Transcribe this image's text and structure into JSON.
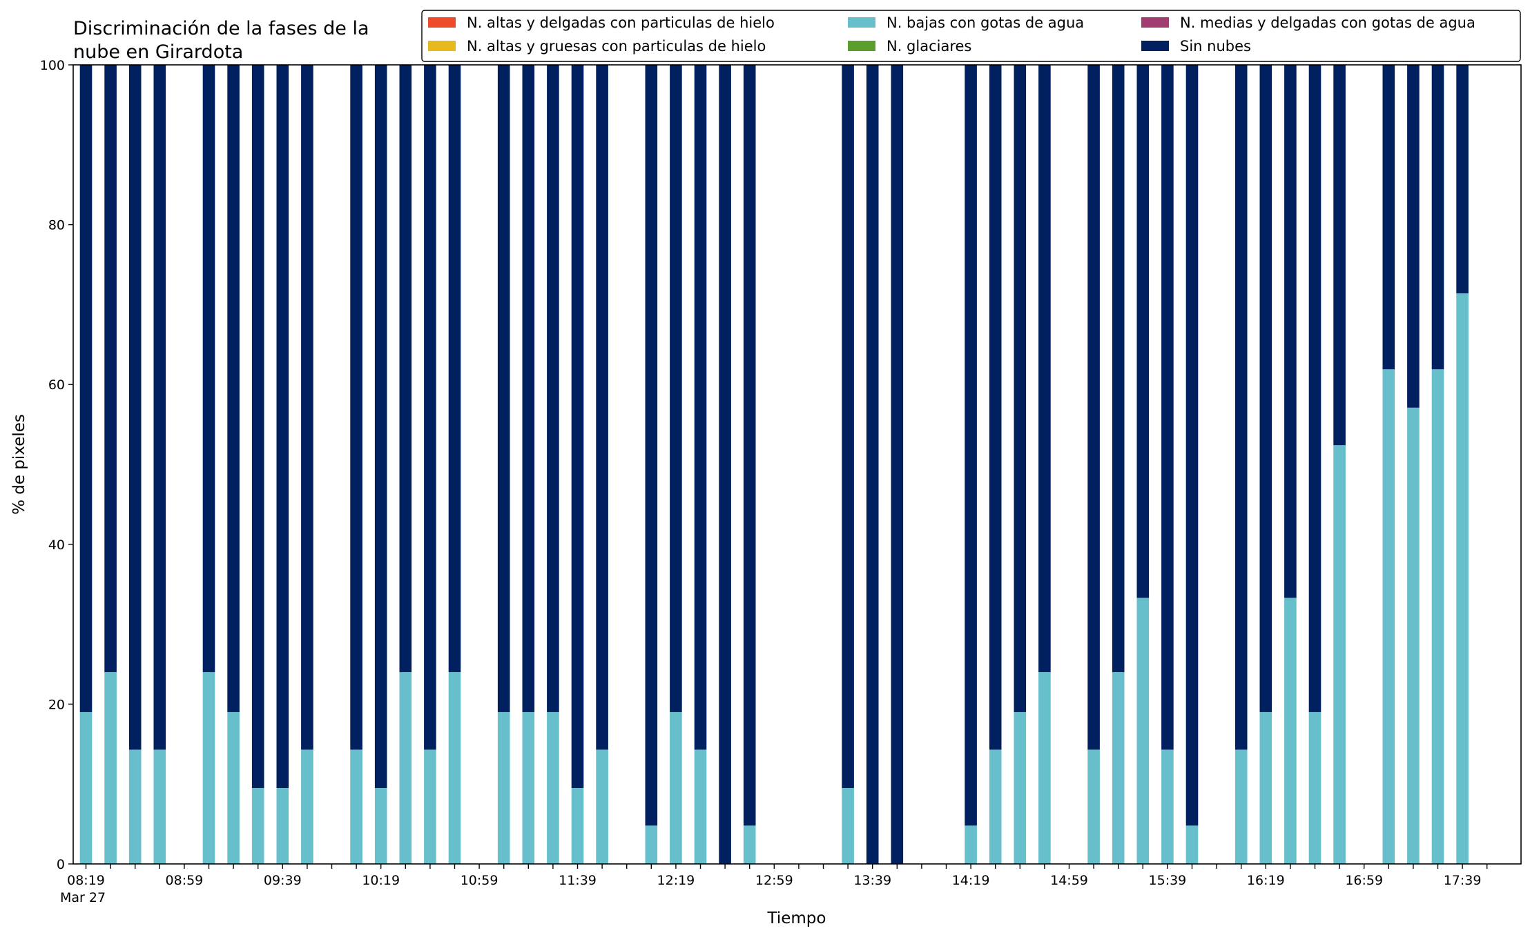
{
  "chart_data": {
    "type": "bar",
    "stacked": true,
    "title_lines": [
      "Discriminación de la fases de la",
      "nube en Girardota"
    ],
    "xlabel": "Tiempo",
    "ylabel": "% de pixeles",
    "ylim": [
      0,
      100
    ],
    "yticks": [
      "0",
      "20",
      "40",
      "60",
      "80",
      "100"
    ],
    "xtick_labels": [
      "08:19",
      "08:59",
      "09:39",
      "10:19",
      "10:59",
      "11:39",
      "12:19",
      "12:59",
      "13:39",
      "14:19",
      "14:59",
      "15:39",
      "16:19",
      "16:59",
      "17:39"
    ],
    "xtick_sublabel": "Mar 27",
    "x_start": "08:19",
    "x_step_minutes": 10,
    "grid": false,
    "legend_position": "top-right",
    "legend": [
      {
        "name": "N. altas y delgadas con particulas de hielo",
        "color": "#ee4b2b"
      },
      {
        "name": "N. altas y gruesas con particulas de hielo",
        "color": "#e6b91e"
      },
      {
        "name": "N. bajas con gotas de agua",
        "color": "#66bfcb"
      },
      {
        "name": "N. glaciares",
        "color": "#5c9e2e"
      },
      {
        "name": "N. medias y delgadas con gotas de agua",
        "color": "#a23d72"
      },
      {
        "name": "Sin nubes",
        "color": "#00205f"
      }
    ],
    "times": [
      "08:19",
      "08:29",
      "08:39",
      "08:49",
      "08:59",
      "09:09",
      "09:19",
      "09:29",
      "09:39",
      "09:49",
      "09:59",
      "10:09",
      "10:19",
      "10:29",
      "10:39",
      "10:49",
      "10:59",
      "11:09",
      "11:19",
      "11:29",
      "11:39",
      "11:49",
      "11:59",
      "12:09",
      "12:19",
      "12:29",
      "12:39",
      "12:49",
      "12:59",
      "13:09",
      "13:19",
      "13:29",
      "13:39",
      "13:49",
      "13:59",
      "14:09",
      "14:19",
      "14:29",
      "14:39",
      "14:49",
      "14:59",
      "15:09",
      "15:19",
      "15:29",
      "15:39",
      "15:49",
      "15:59",
      "16:09",
      "16:19",
      "16:29",
      "16:39",
      "16:49",
      "16:59",
      "17:09",
      "17:19",
      "17:29",
      "17:39",
      "17:49"
    ],
    "series": [
      {
        "name": "N. bajas con gotas de agua",
        "color": "#66bfcb",
        "values": [
          19,
          24,
          14.3,
          14.3,
          null,
          24,
          19,
          9.5,
          9.5,
          14.3,
          null,
          14.3,
          9.5,
          24,
          14.3,
          24,
          null,
          19,
          19,
          19,
          9.5,
          14.3,
          null,
          4.8,
          19,
          14.3,
          0,
          4.8,
          null,
          null,
          null,
          9.5,
          0,
          0,
          null,
          null,
          4.8,
          14.3,
          19,
          24,
          null,
          14.3,
          24,
          33.3,
          14.3,
          4.8,
          null,
          14.3,
          19,
          33.3,
          19,
          52.4,
          null,
          61.9,
          57.1,
          61.9,
          71.4,
          null
        ]
      },
      {
        "name": "Sin nubes",
        "color": "#00205f",
        "values": [
          81,
          76,
          85.7,
          85.7,
          null,
          76,
          81,
          90.5,
          90.5,
          85.7,
          null,
          85.7,
          90.5,
          76,
          85.7,
          76,
          null,
          81,
          81,
          81,
          90.5,
          85.7,
          null,
          95.2,
          81,
          85.7,
          100,
          95.2,
          null,
          null,
          null,
          90.5,
          100,
          100,
          null,
          null,
          95.2,
          85.7,
          81,
          76,
          null,
          85.7,
          76,
          66.7,
          85.7,
          95.2,
          null,
          85.7,
          81,
          66.7,
          81,
          47.6,
          null,
          38.1,
          42.9,
          38.1,
          28.6,
          null
        ]
      }
    ]
  }
}
